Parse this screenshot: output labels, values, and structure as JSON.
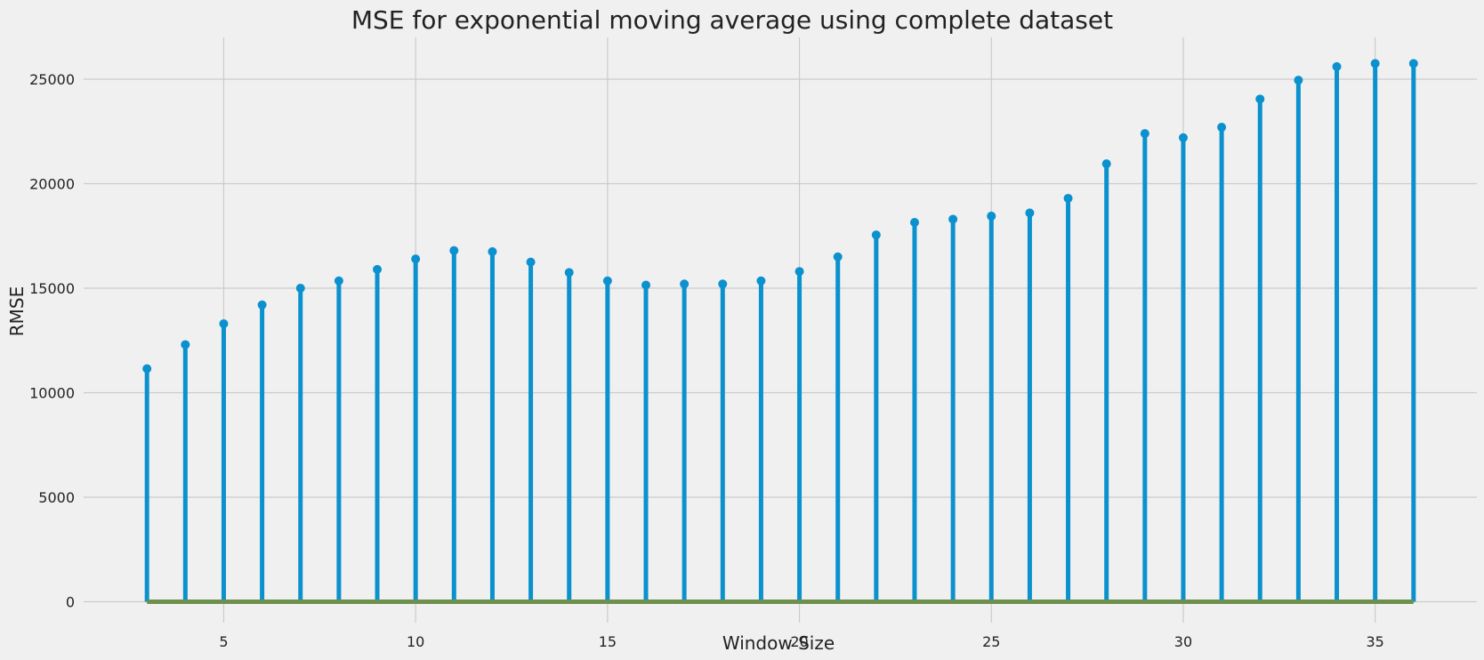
{
  "chart_data": {
    "type": "stem",
    "title": "MSE for exponential moving average using complete dataset",
    "xlabel": "Window Size",
    "ylabel": "RMSE",
    "x": [
      3,
      4,
      5,
      6,
      7,
      8,
      9,
      10,
      11,
      12,
      13,
      14,
      15,
      16,
      17,
      18,
      19,
      20,
      21,
      22,
      23,
      24,
      25,
      26,
      27,
      28,
      29,
      30,
      31,
      32,
      33,
      34,
      35,
      36
    ],
    "values": [
      11150,
      12300,
      13300,
      14200,
      15000,
      15350,
      15900,
      16400,
      16800,
      16750,
      16250,
      15750,
      15350,
      15150,
      15200,
      15200,
      15350,
      15800,
      16500,
      17550,
      18150,
      18300,
      18450,
      18600,
      19300,
      20950,
      22400,
      22200,
      22700,
      24050,
      24950,
      25600,
      25750,
      25750
    ],
    "xlim": [
      1.35,
      37.65
    ],
    "ylim": [
      -1000,
      27000
    ],
    "xticks": [
      5,
      10,
      15,
      20,
      25,
      30,
      35
    ],
    "yticks": [
      0,
      5000,
      10000,
      15000,
      20000,
      25000
    ],
    "grid": true,
    "legend": "none",
    "colors": {
      "stem": "#0a91ce",
      "marker": "#0a91ce",
      "baseline": "#6d904f",
      "grid": "#cbcbcb",
      "background": "#f0f0f0"
    }
  }
}
